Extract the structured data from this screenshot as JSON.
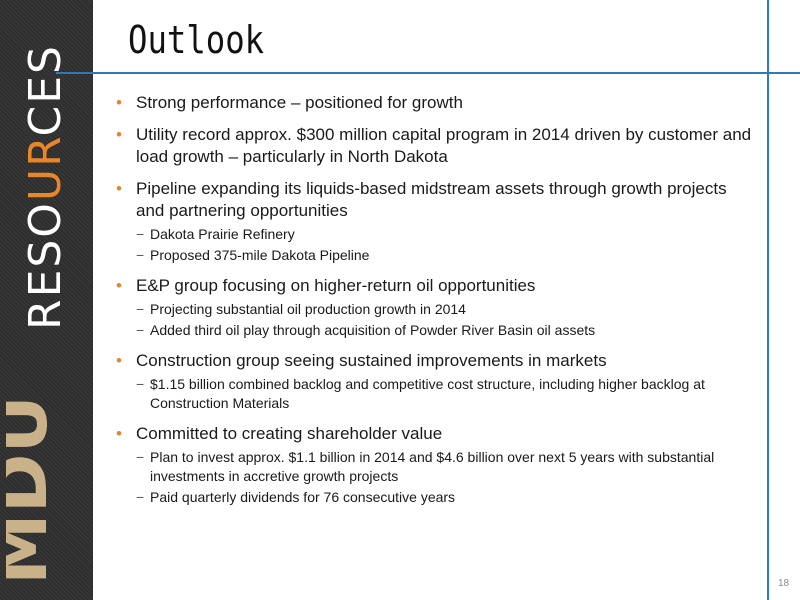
{
  "slide": {
    "title": "Outlook",
    "page_number": "18"
  },
  "sidebar": {
    "brand_pre": "RESO",
    "brand_hl": "UR",
    "brand_post": "CES",
    "logo": "MDU",
    "accent_color": "#e8862a"
  },
  "bullets": [
    {
      "text": "Strong performance – positioned for growth",
      "subs": []
    },
    {
      "text": "Utility record approx. $300 million capital program in 2014 driven by customer and load growth – particularly in North Dakota",
      "subs": []
    },
    {
      "text": "Pipeline expanding its liquids-based midstream assets through growth projects and partnering opportunities",
      "subs": [
        "Dakota Prairie Refinery",
        "Proposed 375-mile Dakota Pipeline"
      ]
    },
    {
      "text": "E&P group focusing on higher-return oil opportunities",
      "subs": [
        "Projecting substantial oil production growth in 2014",
        "Added third oil play through acquisition of Powder River Basin oil assets"
      ]
    },
    {
      "text": "Construction group seeing sustained improvements in markets",
      "subs": [
        "$1.15 billion combined backlog and competitive cost structure, including higher backlog at Construction Materials"
      ]
    },
    {
      "text": "Committed to creating shareholder value",
      "subs": [
        "Plan to invest approx. $1.1 billion in 2014 and $4.6 billion over next 5 years with substantial investments in accretive growth projects",
        "Paid quarterly dividends for 76 consecutive years"
      ]
    }
  ],
  "bullet_marker": "•",
  "sub_marker": "−"
}
